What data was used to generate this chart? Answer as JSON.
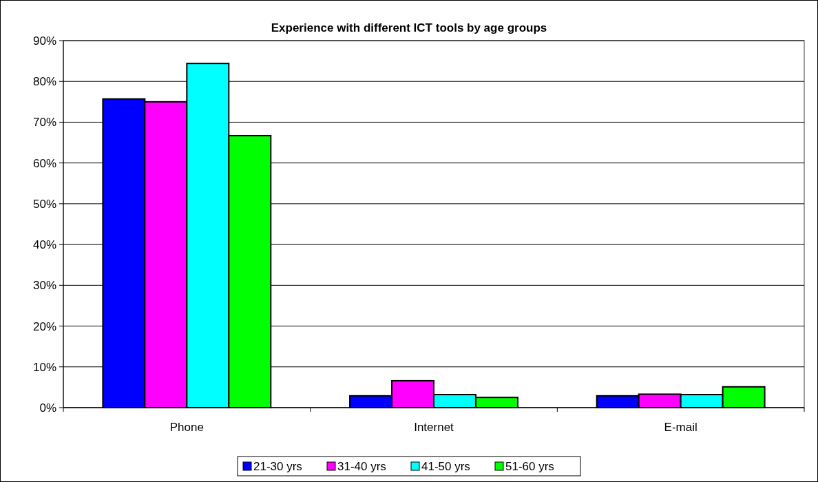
{
  "chart_data": {
    "type": "bar",
    "title": "Experience with different ICT tools by age groups",
    "categories": [
      "Phone",
      "Internet",
      "E-mail"
    ],
    "series": [
      {
        "name": "21-30 yrs",
        "color": "#0000ff",
        "values": [
          75.7,
          2.9,
          2.9
        ]
      },
      {
        "name": "31-40 yrs",
        "color": "#ff00ff",
        "values": [
          75.0,
          6.6,
          3.3
        ]
      },
      {
        "name": "41-50 yrs",
        "color": "#00ffff",
        "values": [
          84.4,
          3.2,
          3.2
        ]
      },
      {
        "name": "51-60 yrs",
        "color": "#00ff00",
        "values": [
          66.7,
          2.5,
          5.1
        ]
      }
    ],
    "ylim": [
      0,
      90
    ],
    "yticks": [
      {
        "value": 0,
        "label": "0%"
      },
      {
        "value": 10,
        "label": "10%"
      },
      {
        "value": 20,
        "label": "20%"
      },
      {
        "value": 30,
        "label": "30%"
      },
      {
        "value": 40,
        "label": "40%"
      },
      {
        "value": 50,
        "label": "50%"
      },
      {
        "value": 60,
        "label": "60%"
      },
      {
        "value": 70,
        "label": "70%"
      },
      {
        "value": 80,
        "label": "80%"
      },
      {
        "value": 90,
        "label": "90%"
      }
    ],
    "grid": "y",
    "legend": "bottom"
  }
}
